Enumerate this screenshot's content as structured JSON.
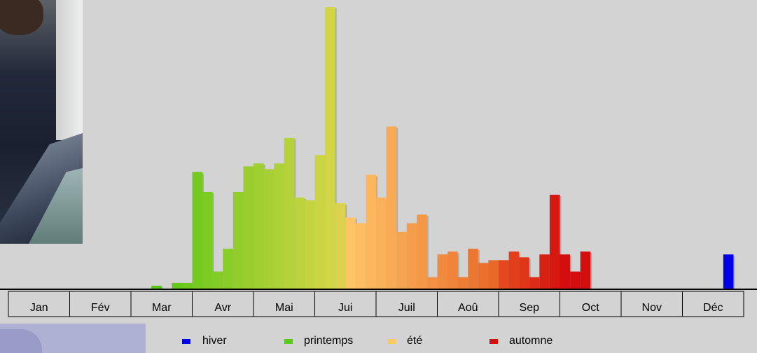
{
  "chart_data": {
    "type": "bar",
    "months": [
      "Jan",
      "Fév",
      "Mar",
      "Avr",
      "Mai",
      "Jui",
      "Juil",
      "Aoû",
      "Sep",
      "Oct",
      "Nov",
      "Déc"
    ],
    "weeks_per_month": 6,
    "values": [
      0,
      0,
      0,
      0,
      0,
      0,
      0,
      0,
      0,
      0,
      0,
      0,
      0,
      0,
      1,
      0,
      2,
      2,
      41,
      34,
      6,
      14,
      34,
      43,
      44,
      42,
      44,
      53,
      32,
      31,
      47,
      99,
      30,
      25,
      23,
      40,
      32,
      57,
      20,
      23,
      26,
      4,
      12,
      13,
      4,
      14,
      9,
      10,
      10,
      13,
      11,
      4,
      12,
      33,
      12,
      6,
      13,
      0,
      0,
      0,
      0,
      0,
      0,
      0,
      0,
      0,
      0,
      0,
      0,
      0,
      12,
      0
    ],
    "season_of_bar": [
      "none",
      "none",
      "none",
      "none",
      "none",
      "none",
      "none",
      "none",
      "none",
      "none",
      "none",
      "none",
      "none",
      "none",
      "printemps",
      "none",
      "printemps",
      "printemps",
      "printemps",
      "printemps",
      "printemps",
      "printemps",
      "printemps",
      "printemps",
      "printemps",
      "printemps",
      "printemps",
      "printemps",
      "printemps",
      "printemps",
      "printemps",
      "ete",
      "ete",
      "ete",
      "ete",
      "ete",
      "ete",
      "ete",
      "ete",
      "ete",
      "ete",
      "ete",
      "ete",
      "ete",
      "ete",
      "ete",
      "ete",
      "ete",
      "automne",
      "automne",
      "automne",
      "automne",
      "automne",
      "automne",
      "automne",
      "automne",
      "automne",
      "none",
      "none",
      "none",
      "none",
      "none",
      "none",
      "none",
      "none",
      "none",
      "none",
      "none",
      "none",
      "none",
      "hiver",
      "none"
    ],
    "ylim": [
      0,
      100
    ],
    "legend": [
      {
        "key": "hiver",
        "label": "hiver",
        "color": "#0000e6"
      },
      {
        "key": "printemps",
        "label": "printemps",
        "color": "#5bc81a"
      },
      {
        "key": "ete",
        "label": "été",
        "color": "#ffc766"
      },
      {
        "key": "automne",
        "label": "automne",
        "color": "#d40f0f"
      }
    ],
    "legend_position": "bottom",
    "grid": false
  }
}
